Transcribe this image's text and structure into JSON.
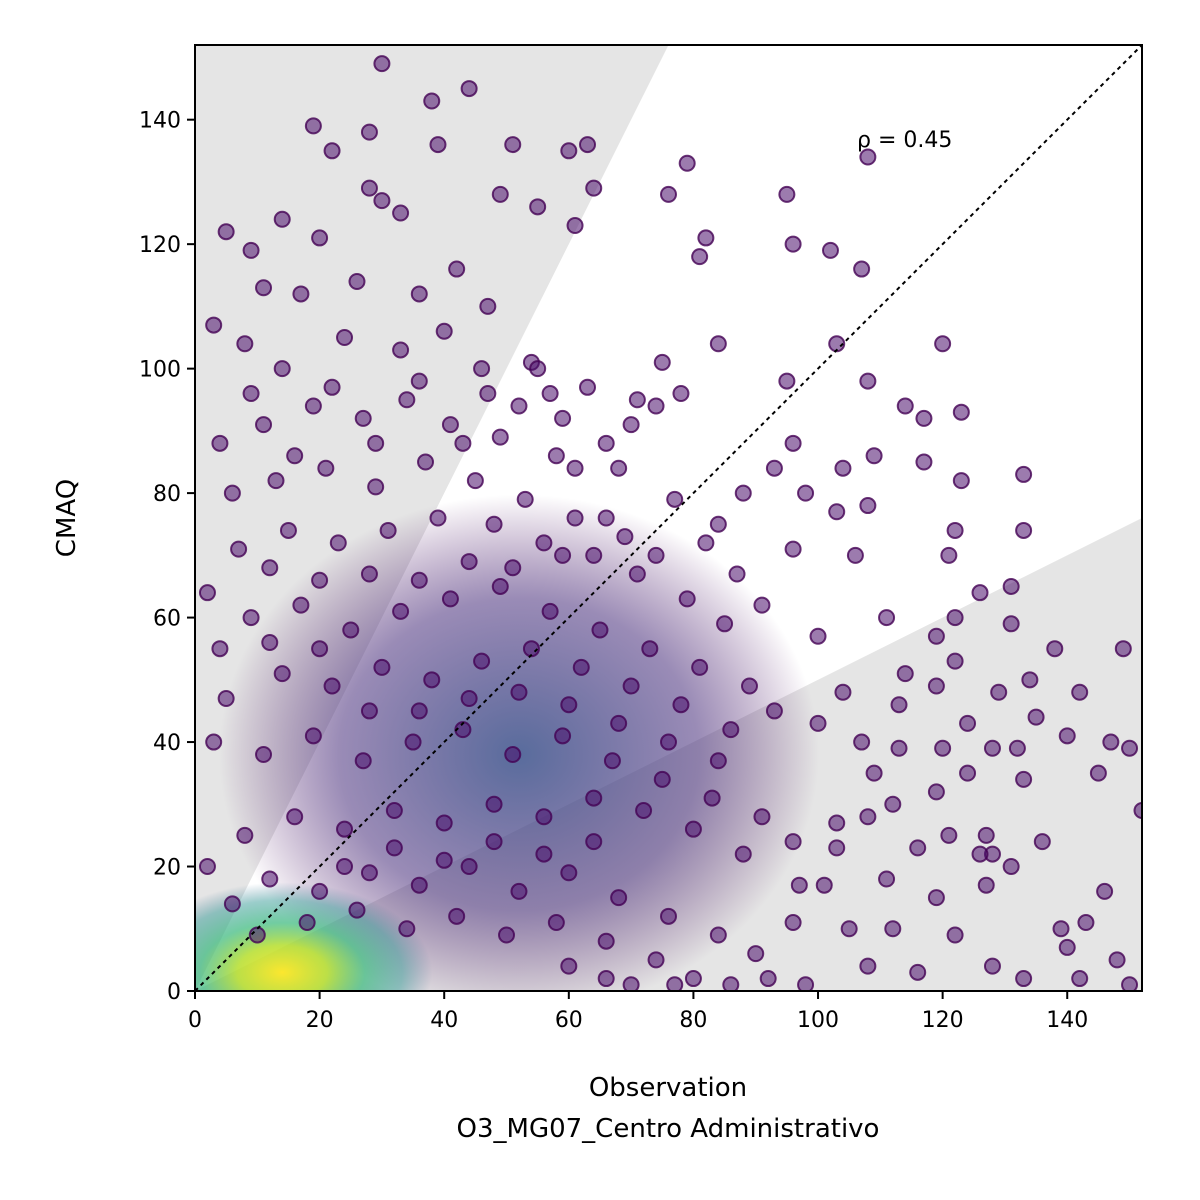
{
  "chart_data": {
    "type": "scatter",
    "xlabel": "Observation",
    "xlabel_sub": "O3_MG07_Centro Administrativo",
    "ylabel": "CMAQ",
    "xlim": [
      0,
      152
    ],
    "ylim": [
      0,
      152
    ],
    "xticks": [
      0,
      20,
      40,
      60,
      80,
      100,
      120,
      140
    ],
    "yticks": [
      0,
      20,
      40,
      60,
      80,
      100,
      120,
      140
    ],
    "annotation": "ρ = 0.45",
    "reference_line": "y = x (dotted)",
    "shaded_region": "outside factor-of-2 band (y > 2x and y < x/2)",
    "colormap": "viridis (point density)",
    "grid": false,
    "series": [
      {
        "points": [
          [
            30,
            149
          ],
          [
            44,
            145
          ],
          [
            38,
            143
          ],
          [
            19,
            139
          ],
          [
            28,
            138
          ],
          [
            39,
            136
          ],
          [
            22,
            135
          ],
          [
            63,
            136
          ],
          [
            51,
            136
          ],
          [
            60,
            135
          ],
          [
            108,
            134
          ],
          [
            79,
            133
          ],
          [
            28,
            129
          ],
          [
            49,
            128
          ],
          [
            64,
            129
          ],
          [
            76,
            128
          ],
          [
            95,
            128
          ],
          [
            30,
            127
          ],
          [
            33,
            125
          ],
          [
            14,
            124
          ],
          [
            55,
            126
          ],
          [
            61,
            123
          ],
          [
            82,
            121
          ],
          [
            96,
            120
          ],
          [
            102,
            119
          ],
          [
            5,
            122
          ],
          [
            20,
            121
          ],
          [
            81,
            118
          ],
          [
            107,
            116
          ],
          [
            9,
            119
          ],
          [
            120,
            104
          ],
          [
            103,
            104
          ],
          [
            108,
            98
          ],
          [
            95,
            98
          ],
          [
            84,
            104
          ],
          [
            75,
            101
          ],
          [
            78,
            96
          ],
          [
            71,
            95
          ],
          [
            114,
            94
          ],
          [
            123,
            93
          ],
          [
            117,
            92
          ],
          [
            96,
            88
          ],
          [
            109,
            86
          ],
          [
            133,
            83
          ],
          [
            93,
            84
          ],
          [
            104,
            84
          ],
          [
            117,
            85
          ],
          [
            123,
            82
          ],
          [
            98,
            80
          ],
          [
            108,
            78
          ],
          [
            88,
            80
          ],
          [
            103,
            77
          ],
          [
            122,
            74
          ],
          [
            133,
            74
          ],
          [
            96,
            71
          ],
          [
            106,
            70
          ],
          [
            121,
            70
          ],
          [
            126,
            64
          ],
          [
            131,
            65
          ],
          [
            111,
            60
          ],
          [
            100,
            57
          ],
          [
            119,
            57
          ],
          [
            122,
            60
          ],
          [
            131,
            59
          ],
          [
            138,
            55
          ],
          [
            149,
            55
          ],
          [
            122,
            53
          ],
          [
            114,
            51
          ],
          [
            119,
            49
          ],
          [
            129,
            48
          ],
          [
            134,
            50
          ],
          [
            142,
            48
          ],
          [
            104,
            48
          ],
          [
            113,
            46
          ],
          [
            124,
            43
          ],
          [
            135,
            44
          ],
          [
            147,
            40
          ],
          [
            150,
            39
          ],
          [
            140,
            41
          ],
          [
            132,
            39
          ],
          [
            128,
            39
          ],
          [
            120,
            39
          ],
          [
            113,
            39
          ],
          [
            107,
            40
          ],
          [
            100,
            43
          ],
          [
            109,
            35
          ],
          [
            124,
            35
          ],
          [
            133,
            34
          ],
          [
            145,
            35
          ],
          [
            152,
            29
          ],
          [
            119,
            32
          ],
          [
            112,
            30
          ],
          [
            108,
            28
          ],
          [
            103,
            27
          ],
          [
            127,
            25
          ],
          [
            121,
            25
          ],
          [
            136,
            24
          ],
          [
            116,
            23
          ],
          [
            128,
            22
          ],
          [
            126,
            22
          ],
          [
            103,
            23
          ],
          [
            131,
            20
          ],
          [
            111,
            18
          ],
          [
            127,
            17
          ],
          [
            146,
            16
          ],
          [
            119,
            15
          ],
          [
            101,
            17
          ],
          [
            97,
            17
          ],
          [
            143,
            11
          ],
          [
            139,
            10
          ],
          [
            122,
            9
          ],
          [
            112,
            10
          ],
          [
            105,
            10
          ],
          [
            96,
            11
          ],
          [
            140,
            7
          ],
          [
            148,
            5
          ],
          [
            128,
            4
          ],
          [
            108,
            4
          ],
          [
            116,
            3
          ],
          [
            133,
            2
          ],
          [
            142,
            2
          ],
          [
            150,
            1
          ],
          [
            92,
            2
          ],
          [
            98,
            1
          ],
          [
            86,
            1
          ],
          [
            80,
            2
          ],
          [
            77,
            1
          ],
          [
            70,
            1
          ],
          [
            66,
            2
          ],
          [
            60,
            4
          ],
          [
            47,
            110
          ],
          [
            42,
            116
          ],
          [
            36,
            112
          ],
          [
            26,
            114
          ],
          [
            17,
            112
          ],
          [
            11,
            113
          ],
          [
            3,
            107
          ],
          [
            8,
            104
          ],
          [
            14,
            100
          ],
          [
            24,
            105
          ],
          [
            33,
            103
          ],
          [
            40,
            106
          ],
          [
            46,
            100
          ],
          [
            54,
            101
          ],
          [
            57,
            96
          ],
          [
            63,
            97
          ],
          [
            70,
            91
          ],
          [
            66,
            88
          ],
          [
            58,
            86
          ],
          [
            49,
            89
          ],
          [
            41,
            91
          ],
          [
            34,
            95
          ],
          [
            27,
            92
          ],
          [
            19,
            94
          ],
          [
            11,
            91
          ],
          [
            4,
            88
          ],
          [
            6,
            80
          ],
          [
            13,
            82
          ],
          [
            21,
            84
          ],
          [
            29,
            81
          ],
          [
            37,
            85
          ],
          [
            45,
            82
          ],
          [
            53,
            79
          ],
          [
            61,
            76
          ],
          [
            69,
            73
          ],
          [
            74,
            70
          ],
          [
            82,
            72
          ],
          [
            87,
            67
          ],
          [
            91,
            62
          ],
          [
            85,
            59
          ],
          [
            79,
            63
          ],
          [
            71,
            67
          ],
          [
            64,
            70
          ],
          [
            56,
            72
          ],
          [
            48,
            75
          ],
          [
            39,
            76
          ],
          [
            31,
            74
          ],
          [
            23,
            72
          ],
          [
            15,
            74
          ],
          [
            7,
            71
          ],
          [
            2,
            64
          ],
          [
            9,
            60
          ],
          [
            17,
            62
          ],
          [
            25,
            58
          ],
          [
            33,
            61
          ],
          [
            41,
            63
          ],
          [
            49,
            65
          ],
          [
            57,
            61
          ],
          [
            65,
            58
          ],
          [
            73,
            55
          ],
          [
            81,
            52
          ],
          [
            89,
            49
          ],
          [
            93,
            45
          ],
          [
            86,
            42
          ],
          [
            78,
            46
          ],
          [
            70,
            49
          ],
          [
            62,
            52
          ],
          [
            54,
            55
          ],
          [
            46,
            53
          ],
          [
            38,
            50
          ],
          [
            30,
            52
          ],
          [
            22,
            49
          ],
          [
            14,
            51
          ],
          [
            5,
            47
          ],
          [
            3,
            40
          ],
          [
            11,
            38
          ],
          [
            19,
            41
          ],
          [
            27,
            37
          ],
          [
            35,
            40
          ],
          [
            43,
            42
          ],
          [
            51,
            38
          ],
          [
            59,
            41
          ],
          [
            67,
            37
          ],
          [
            75,
            34
          ],
          [
            83,
            31
          ],
          [
            91,
            28
          ],
          [
            96,
            24
          ],
          [
            88,
            22
          ],
          [
            80,
            26
          ],
          [
            72,
            29
          ],
          [
            64,
            31
          ],
          [
            56,
            28
          ],
          [
            48,
            30
          ],
          [
            40,
            27
          ],
          [
            32,
            29
          ],
          [
            24,
            26
          ],
          [
            16,
            28
          ],
          [
            8,
            25
          ],
          [
            2,
            20
          ],
          [
            6,
            14
          ],
          [
            12,
            18
          ],
          [
            20,
            16
          ],
          [
            28,
            19
          ],
          [
            36,
            17
          ],
          [
            44,
            20
          ],
          [
            52,
            16
          ],
          [
            60,
            19
          ],
          [
            68,
            15
          ],
          [
            76,
            12
          ],
          [
            84,
            9
          ],
          [
            90,
            6
          ],
          [
            74,
            5
          ],
          [
            66,
            8
          ],
          [
            58,
            11
          ],
          [
            50,
            9
          ],
          [
            42,
            12
          ],
          [
            34,
            10
          ],
          [
            26,
            13
          ],
          [
            18,
            11
          ],
          [
            10,
            9
          ],
          [
            55,
            100
          ],
          [
            52,
            94
          ],
          [
            59,
            92
          ],
          [
            47,
            96
          ],
          [
            43,
            88
          ],
          [
            36,
            98
          ],
          [
            29,
            88
          ],
          [
            22,
            97
          ],
          [
            16,
            86
          ],
          [
            9,
            96
          ],
          [
            74,
            94
          ],
          [
            68,
            84
          ],
          [
            61,
            84
          ],
          [
            77,
            79
          ],
          [
            84,
            75
          ],
          [
            66,
            76
          ],
          [
            59,
            70
          ],
          [
            51,
            68
          ],
          [
            44,
            69
          ],
          [
            36,
            66
          ],
          [
            28,
            67
          ],
          [
            20,
            66
          ],
          [
            12,
            68
          ],
          [
            4,
            55
          ],
          [
            12,
            56
          ],
          [
            20,
            55
          ],
          [
            28,
            45
          ],
          [
            36,
            45
          ],
          [
            44,
            47
          ],
          [
            52,
            48
          ],
          [
            60,
            46
          ],
          [
            68,
            43
          ],
          [
            76,
            40
          ],
          [
            84,
            37
          ],
          [
            64,
            24
          ],
          [
            56,
            22
          ],
          [
            48,
            24
          ],
          [
            40,
            21
          ],
          [
            32,
            23
          ],
          [
            24,
            20
          ]
        ]
      }
    ]
  }
}
